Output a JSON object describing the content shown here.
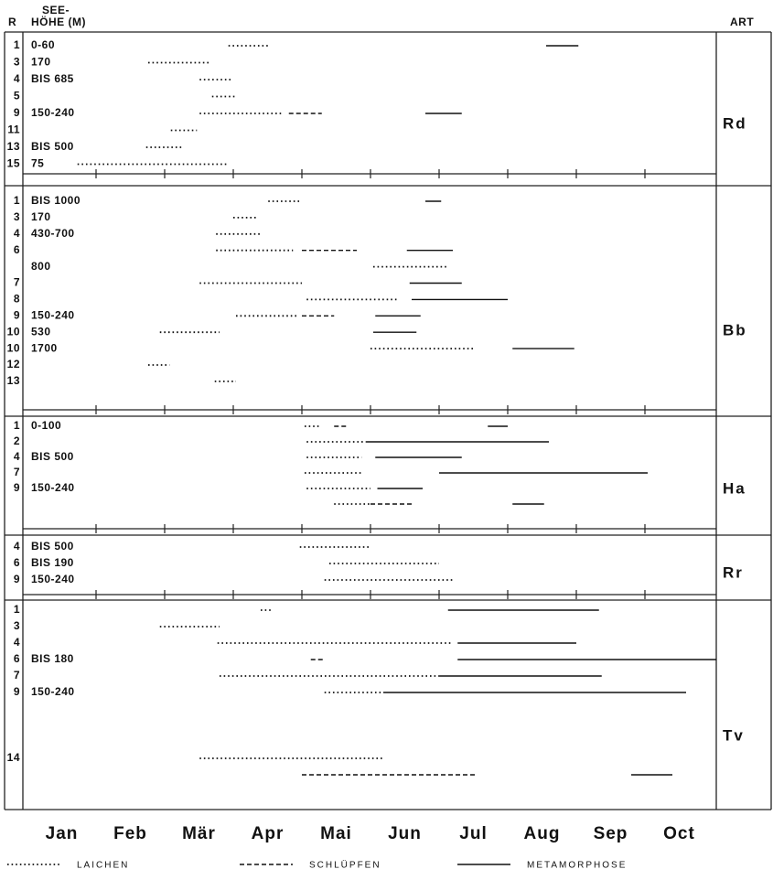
{
  "header": {
    "r": "R",
    "elev_top": "SEE-",
    "elev": "HÖHE (M)",
    "art": "ART"
  },
  "months": [
    "Jan",
    "Feb",
    "Mär",
    "Apr",
    "Mai",
    "Jun",
    "Jul",
    "Aug",
    "Sep",
    "Oct"
  ],
  "xticks": [
    1,
    2,
    3,
    4,
    5,
    6,
    7,
    8,
    9
  ],
  "legend": [
    {
      "style": "dotted",
      "label": "LAICHEN"
    },
    {
      "style": "dashed",
      "label": "SCHLÜPFEN"
    },
    {
      "style": "solid",
      "label": "METAMORPHOSE"
    }
  ],
  "groups": [
    {
      "art": "Rd",
      "rows": [
        {
          "r": "1",
          "elev": "0-60",
          "segments": [
            {
              "style": "dotted",
              "start": 2.93,
              "end": 3.53
            },
            {
              "style": "solid",
              "start": 7.56,
              "end": 8.03
            }
          ]
        },
        {
          "r": "3",
          "elev": "170",
          "segments": [
            {
              "style": "dotted",
              "start": 1.76,
              "end": 2.64
            }
          ]
        },
        {
          "r": "4",
          "elev": "BIS 685",
          "segments": [
            {
              "style": "dotted",
              "start": 2.51,
              "end": 3.0
            }
          ]
        },
        {
          "r": "5",
          "segments": [
            {
              "style": "dotted",
              "start": 2.69,
              "end": 3.04
            }
          ]
        },
        {
          "r": "9",
          "elev": "150-240",
          "segments": [
            {
              "style": "dotted",
              "start": 2.51,
              "end": 3.71
            },
            {
              "style": "dashed",
              "start": 3.81,
              "end": 4.29
            },
            {
              "style": "solid",
              "start": 5.8,
              "end": 6.33
            }
          ]
        },
        {
          "r": "11",
          "segments": [
            {
              "style": "dotted",
              "start": 2.09,
              "end": 2.47
            }
          ]
        },
        {
          "r": "13",
          "elev": "BIS 500",
          "segments": [
            {
              "style": "dotted",
              "start": 1.73,
              "end": 2.27
            }
          ]
        },
        {
          "r": "15",
          "elev": "75",
          "segments": [
            {
              "style": "dotted",
              "start": 0.73,
              "end": 2.91
            }
          ]
        }
      ]
    },
    {
      "art": "Bb",
      "rows": [
        {
          "r": "1",
          "elev": "BIS 1000",
          "segments": [
            {
              "style": "dotted",
              "start": 3.51,
              "end": 4.0
            },
            {
              "style": "solid",
              "start": 5.8,
              "end": 6.03
            }
          ]
        },
        {
          "r": "3",
          "elev": "170",
          "segments": [
            {
              "style": "dotted",
              "start": 3.0,
              "end": 3.33
            }
          ]
        },
        {
          "r": "4",
          "elev": "430-700",
          "segments": [
            {
              "style": "dotted",
              "start": 2.75,
              "end": 3.4
            }
          ]
        },
        {
          "r": "6",
          "segments": [
            {
              "style": "dotted",
              "start": 2.75,
              "end": 3.87
            },
            {
              "style": "dashed",
              "start": 4.0,
              "end": 4.8
            },
            {
              "style": "solid",
              "start": 5.53,
              "end": 6.2
            }
          ]
        },
        {
          "elev": "800",
          "segments": [
            {
              "style": "dotted",
              "start": 5.04,
              "end": 6.13
            }
          ]
        },
        {
          "r": "7",
          "segments": [
            {
              "style": "dotted",
              "start": 2.51,
              "end": 4.0
            },
            {
              "style": "solid",
              "start": 5.57,
              "end": 6.33
            }
          ]
        },
        {
          "r": "8",
          "segments": [
            {
              "style": "dotted",
              "start": 4.07,
              "end": 5.4
            },
            {
              "style": "solid",
              "start": 5.6,
              "end": 7.0
            }
          ]
        },
        {
          "r": "9",
          "elev": "150-240",
          "segments": [
            {
              "style": "dotted",
              "start": 3.04,
              "end": 3.93
            },
            {
              "style": "dashed",
              "start": 4.0,
              "end": 4.47
            },
            {
              "style": "solid",
              "start": 5.07,
              "end": 5.73
            }
          ]
        },
        {
          "r": "10",
          "elev": "530",
          "segments": [
            {
              "style": "dotted",
              "start": 1.93,
              "end": 2.8
            },
            {
              "style": "solid",
              "start": 5.04,
              "end": 5.67
            }
          ]
        },
        {
          "r": "10",
          "elev": "1700",
          "segments": [
            {
              "style": "dotted",
              "start": 5.0,
              "end": 6.53
            },
            {
              "style": "solid",
              "start": 7.07,
              "end": 7.97
            }
          ]
        },
        {
          "r": "12",
          "segments": [
            {
              "style": "dotted",
              "start": 1.76,
              "end": 2.07
            }
          ]
        },
        {
          "r": "13",
          "segments": [
            {
              "style": "dotted",
              "start": 2.73,
              "end": 3.04
            }
          ]
        }
      ]
    },
    {
      "art": "Ha",
      "rows": [
        {
          "r": "1",
          "elev": "0-100",
          "segments": [
            {
              "style": "dotted",
              "start": 4.04,
              "end": 4.27
            },
            {
              "style": "dashed",
              "start": 4.47,
              "end": 4.67
            },
            {
              "style": "solid",
              "start": 6.71,
              "end": 7.0
            }
          ]
        },
        {
          "r": "2",
          "segments": [
            {
              "style": "dotted",
              "start": 4.07,
              "end": 4.93
            },
            {
              "style": "solid",
              "start": 4.93,
              "end": 7.6
            }
          ]
        },
        {
          "r": "4",
          "elev": "BIS 500",
          "segments": [
            {
              "style": "dotted",
              "start": 4.07,
              "end": 4.87
            },
            {
              "style": "solid",
              "start": 5.07,
              "end": 6.33
            }
          ]
        },
        {
          "r": "7",
          "segments": [
            {
              "style": "dotted",
              "start": 4.04,
              "end": 4.87
            },
            {
              "style": "solid",
              "start": 6.0,
              "end": 9.04
            }
          ]
        },
        {
          "r": "9",
          "elev": "150-240",
          "segments": [
            {
              "style": "dotted",
              "start": 4.07,
              "end": 5.0
            },
            {
              "style": "solid",
              "start": 5.1,
              "end": 5.76
            }
          ]
        },
        {
          "segments": [
            {
              "style": "dotted",
              "start": 4.47,
              "end": 5.0
            },
            {
              "style": "dashed",
              "start": 5.0,
              "end": 5.6
            },
            {
              "style": "solid",
              "start": 7.07,
              "end": 7.53
            }
          ]
        }
      ]
    },
    {
      "art": "Rr",
      "rows": [
        {
          "r": "4",
          "elev": "BIS 500",
          "segments": [
            {
              "style": "dotted",
              "start": 3.97,
              "end": 5.0
            }
          ]
        },
        {
          "r": "6",
          "elev": "BIS 190",
          "segments": [
            {
              "style": "dotted",
              "start": 4.4,
              "end": 6.0
            }
          ]
        },
        {
          "r": "9",
          "elev": "150-240",
          "segments": [
            {
              "style": "dotted",
              "start": 4.33,
              "end": 6.23
            }
          ]
        }
      ]
    },
    {
      "art": "Tv",
      "rows": [
        {
          "r": "1",
          "segments": [
            {
              "style": "dotted",
              "start": 3.4,
              "end": 3.57
            },
            {
              "style": "solid",
              "start": 6.13,
              "end": 8.33
            }
          ]
        },
        {
          "r": "3",
          "segments": [
            {
              "style": "dotted",
              "start": 1.93,
              "end": 2.8
            }
          ]
        },
        {
          "r": "4",
          "segments": [
            {
              "style": "dotted",
              "start": 2.77,
              "end": 6.2
            },
            {
              "style": "solid",
              "start": 6.27,
              "end": 8.0
            }
          ]
        },
        {
          "r": "6",
          "elev": "BIS 180",
          "segments": [
            {
              "style": "dashed",
              "start": 4.13,
              "end": 4.33
            },
            {
              "style": "solid",
              "start": 6.27,
              "end": 10.04
            }
          ]
        },
        {
          "r": "7",
          "segments": [
            {
              "style": "dotted",
              "start": 2.8,
              "end": 6.0
            },
            {
              "style": "solid",
              "start": 6.0,
              "end": 8.37
            }
          ]
        },
        {
          "r": "9",
          "elev": "150-240",
          "segments": [
            {
              "style": "dotted",
              "start": 4.33,
              "end": 5.2
            },
            {
              "style": "solid",
              "start": 5.2,
              "end": 9.6
            }
          ]
        },
        {
          "segments": []
        },
        {
          "segments": []
        },
        {
          "segments": []
        },
        {
          "r": "14",
          "segments": [
            {
              "style": "dotted",
              "start": 2.51,
              "end": 5.2
            }
          ]
        },
        {
          "segments": [
            {
              "style": "dashed",
              "start": 4.0,
              "end": 6.53
            },
            {
              "style": "solid",
              "start": 8.8,
              "end": 9.4
            }
          ]
        }
      ]
    }
  ]
}
